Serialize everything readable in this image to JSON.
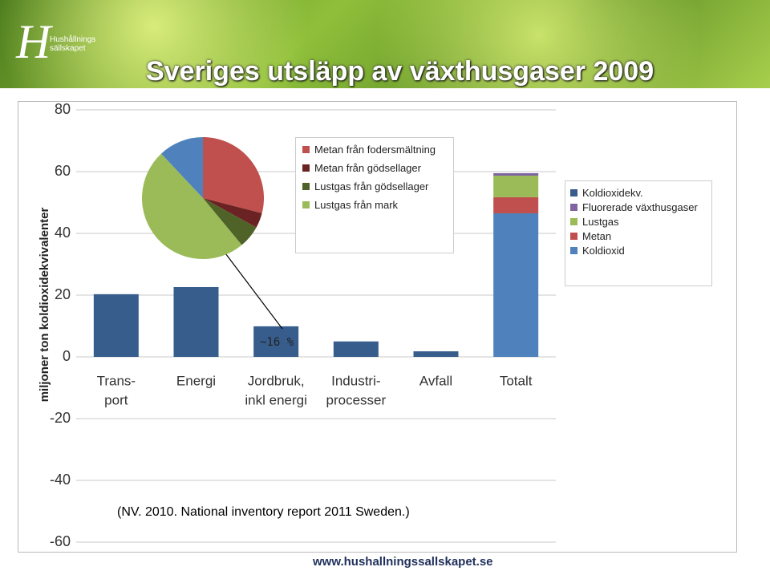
{
  "header": {
    "title": "Sveriges utsläpp av växthusgaser 2009",
    "logo_lines": [
      "Hushållnings",
      "sällskapet"
    ]
  },
  "chart_data": [
    {
      "type": "bar",
      "y_label": "miljoner ton koldioxidekvivalenter",
      "categories": [
        [
          "Trans-",
          "port"
        ],
        [
          "Energi"
        ],
        [
          "Jordbruk,",
          "inkl energi"
        ],
        [
          "Industri-",
          "processer"
        ],
        [
          "Avfall"
        ],
        [
          "Totalt"
        ]
      ],
      "series": [
        {
          "name": "Koldioxidekv.",
          "color": "#375d8c",
          "values": [
            20.3,
            22.6,
            9.9,
            5,
            1.8,
            null
          ]
        },
        {
          "name": "Fluorerade växthusgaser",
          "color": "#8064a2",
          "values": [
            null,
            null,
            null,
            null,
            null,
            0.8
          ]
        },
        {
          "name": "Lustgas",
          "color": "#9bbb59",
          "values": [
            null,
            null,
            null,
            null,
            null,
            7
          ]
        },
        {
          "name": "Metan",
          "color": "#c0504d",
          "values": [
            null,
            null,
            null,
            null,
            null,
            5.2
          ]
        },
        {
          "name": "Koldioxid",
          "color": "#4f81bd",
          "values": [
            null,
            null,
            null,
            null,
            null,
            46.5
          ]
        }
      ],
      "stacked": true,
      "ylim": [
        -60,
        80
      ],
      "yticks": [
        -60,
        -40,
        -20,
        0,
        20,
        40,
        60,
        80
      ],
      "grid": true,
      "annotation": "~16 %"
    },
    {
      "type": "pie",
      "categories": [
        "Metan från fodersmältning",
        "Metan från gödsellager",
        "Lustgas från gödsellager",
        "Lustgas från mark",
        null
      ],
      "values": [
        29,
        4,
        6,
        49,
        12
      ],
      "colors": [
        "#c0504d",
        "#6b2222",
        "#4f6228",
        "#9bbb59",
        "#4f81bd"
      ]
    }
  ],
  "source": "(NV. 2010.  National inventory report 2011 Sweden.)",
  "footer": "www.hushallningssallskapet.se"
}
